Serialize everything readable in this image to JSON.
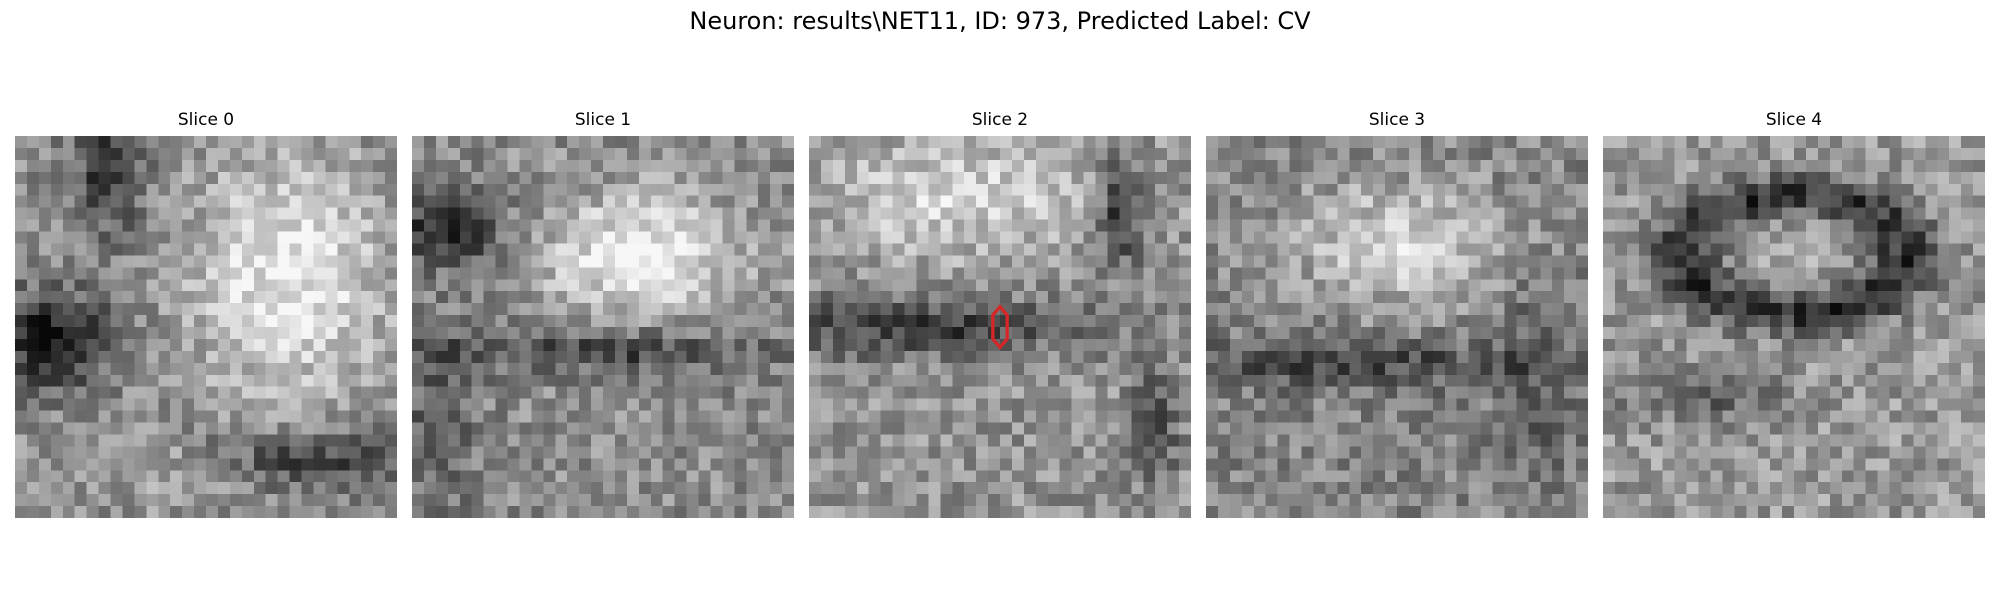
{
  "figure": {
    "title": "Neuron: results\\NET11, ID: 973, Predicted Label: CV"
  },
  "slices": [
    {
      "label": "Slice 0"
    },
    {
      "label": "Slice 1"
    },
    {
      "label": "Slice 2",
      "marker_color": "#d62728"
    },
    {
      "label": "Slice 3"
    },
    {
      "label": "Slice 4"
    }
  ]
}
